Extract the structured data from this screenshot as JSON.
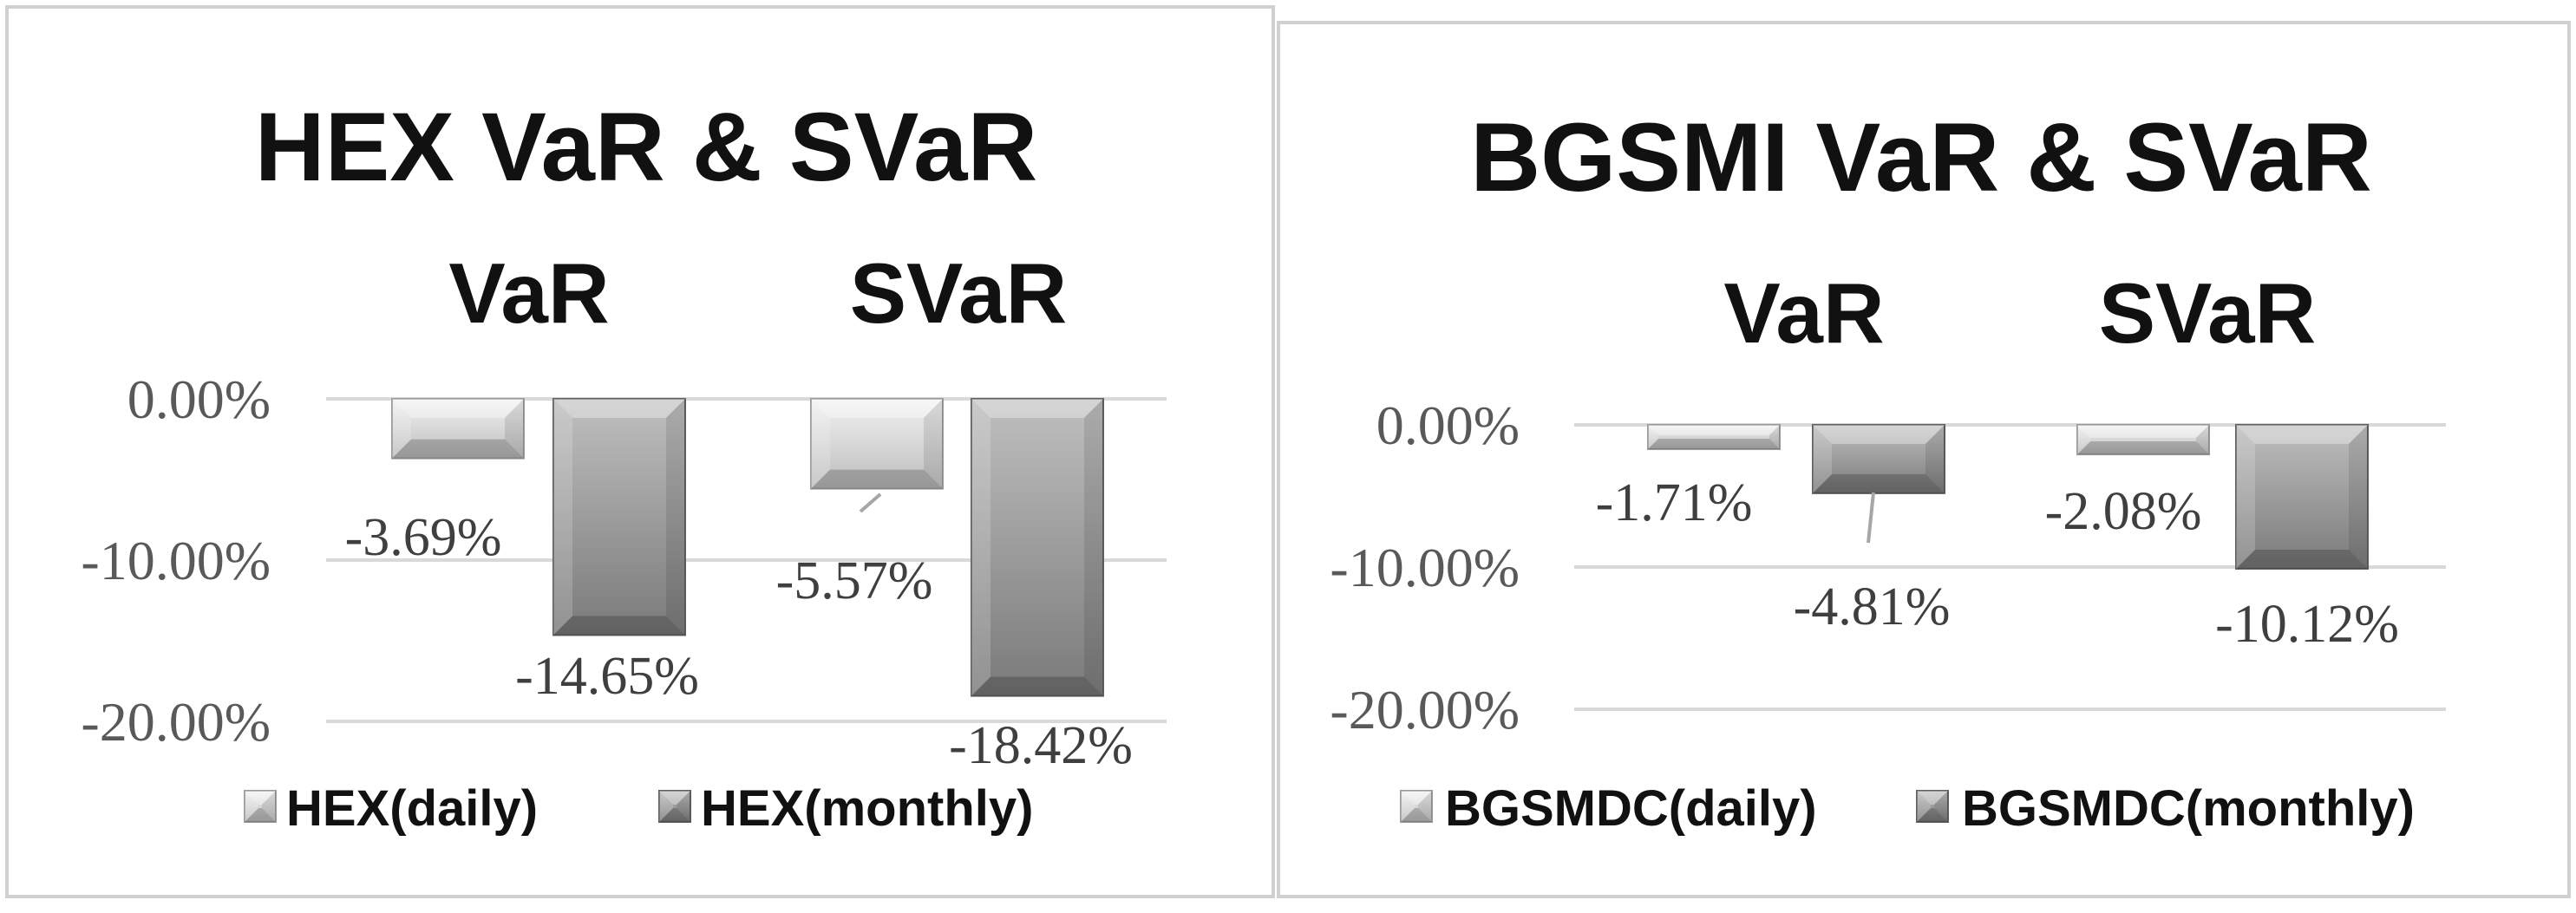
{
  "chart_data": [
    {
      "type": "bar",
      "title": "HEX VaR & SVaR",
      "categories": [
        "VaR",
        "SVaR"
      ],
      "series": [
        {
          "name": "HEX(daily)",
          "values": [
            -3.69,
            -5.57
          ]
        },
        {
          "name": "HEX(monthly)",
          "values": [
            -14.65,
            -18.42
          ]
        }
      ],
      "data_labels": [
        [
          "-3.69%",
          "-5.57%"
        ],
        [
          "-14.65%",
          "-18.42%"
        ]
      ],
      "y_ticks": [
        0,
        -10,
        -20
      ],
      "y_tick_labels": [
        "0.00%",
        "-10.00%",
        "-20.00%"
      ],
      "ylim": [
        -20,
        0
      ],
      "category_axis_position": "top",
      "grid": true,
      "legend": "bottom",
      "colors": {
        "daily": "#d4d4d4",
        "monthly": "#8c8c8c",
        "gridline": "#d9d9d9",
        "border": "#d0d0d0"
      }
    },
    {
      "type": "bar",
      "title": "BGSMI VaR & SVaR",
      "categories": [
        "VaR",
        "SVaR"
      ],
      "series": [
        {
          "name": "BGSMDC(daily)",
          "values": [
            -1.71,
            -2.08
          ]
        },
        {
          "name": "BGSMDC(monthly)",
          "values": [
            -4.81,
            -10.12
          ]
        }
      ],
      "data_labels": [
        [
          "-1.71%",
          "-2.08%"
        ],
        [
          "-4.81%",
          "-10.12%"
        ]
      ],
      "y_ticks": [
        0,
        -10,
        -20
      ],
      "y_tick_labels": [
        "0.00%",
        "-10.00%",
        "-20.00%"
      ],
      "ylim": [
        -20,
        0
      ],
      "category_axis_position": "top",
      "grid": true,
      "legend": "bottom",
      "colors": {
        "daily": "#d4d4d4",
        "monthly": "#8c8c8c",
        "gridline": "#d9d9d9",
        "border": "#d0d0d0"
      }
    }
  ]
}
